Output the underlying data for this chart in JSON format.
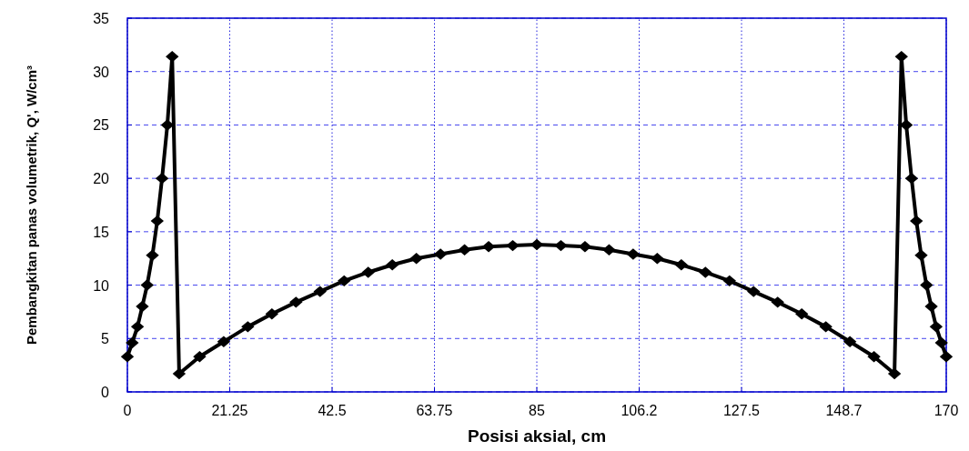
{
  "chart_data": {
    "type": "line",
    "xlabel": "Posisi aksial, cm",
    "ylabel": "Pembangkitan panas volumetrik, Q', W/cm³",
    "x": [
      0,
      1,
      2.1,
      3.1,
      4.1,
      5.2,
      6.2,
      7.2,
      8.3,
      9.3,
      10.75,
      15,
      20,
      25,
      30,
      35,
      40,
      45,
      50,
      55,
      60,
      65,
      70,
      75,
      80,
      85,
      90,
      95,
      100,
      105,
      110,
      115,
      120,
      125,
      130,
      135,
      140,
      145,
      150,
      155,
      159.25,
      160.7,
      161.7,
      162.8,
      163.8,
      164.8,
      165.9,
      166.9,
      167.9,
      169,
      170
    ],
    "series": [
      {
        "color": "#000000",
        "values": [
          3.3,
          4.6,
          6.1,
          8,
          10,
          12.8,
          16,
          20,
          25,
          31.4,
          1.7,
          3.3,
          4.7,
          6.1,
          7.3,
          8.4,
          9.4,
          10.4,
          11.2,
          11.9,
          12.5,
          12.9,
          13.3,
          13.6,
          13.7,
          13.8,
          13.7,
          13.6,
          13.3,
          12.9,
          12.5,
          11.9,
          11.2,
          10.4,
          9.4,
          8.4,
          7.3,
          6.1,
          4.7,
          3.3,
          1.7,
          31.4,
          25,
          20,
          16,
          12.8,
          10,
          8,
          6.1,
          4.6,
          3.3
        ]
      }
    ],
    "xlim": [
      0,
      170
    ],
    "xticks": [
      0,
      21.25,
      42.5,
      63.75,
      85,
      {
        "value": 106.25,
        "label": "106.2"
      },
      127.5,
      {
        "value": 148.75,
        "label": "148.7"
      },
      170
    ],
    "ylim": [
      0,
      35
    ],
    "yticks": [
      0,
      5,
      10,
      15,
      20,
      25,
      30,
      35
    ],
    "grid": true,
    "marker": "diamond",
    "line_style": "solid"
  }
}
